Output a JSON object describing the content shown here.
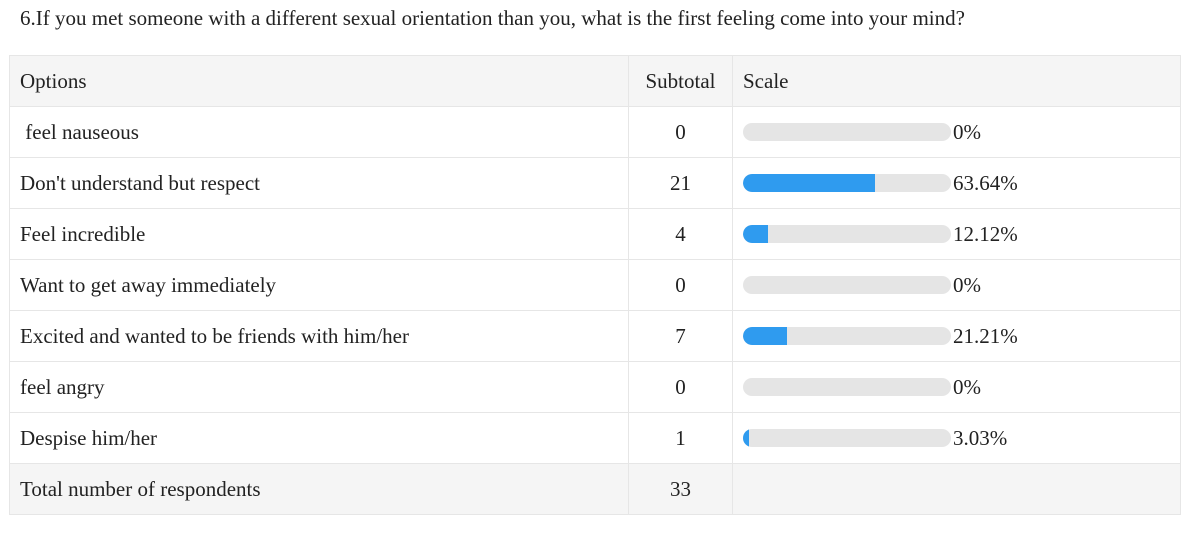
{
  "question": "6.If you met someone with a different sexual orientation than you, what is the first feeling come into your mind?",
  "headers": {
    "options": "Options",
    "subtotal": "Subtotal",
    "scale": "Scale"
  },
  "rows": [
    {
      "label": " feel nauseous",
      "subtotal": "0",
      "percent": "0%",
      "fraction": 0.0
    },
    {
      "label": "Don't understand but respect",
      "subtotal": "21",
      "percent": "63.64%",
      "fraction": 0.6364
    },
    {
      "label": "Feel incredible",
      "subtotal": "4",
      "percent": "12.12%",
      "fraction": 0.1212
    },
    {
      "label": "Want to get away immediately",
      "subtotal": "0",
      "percent": "0%",
      "fraction": 0.0
    },
    {
      "label": "Excited and wanted to be friends with him/her",
      "subtotal": "7",
      "percent": "21.21%",
      "fraction": 0.2121
    },
    {
      "label": "feel angry",
      "subtotal": "0",
      "percent": "0%",
      "fraction": 0.0
    },
    {
      "label": "Despise him/her",
      "subtotal": "1",
      "percent": "3.03%",
      "fraction": 0.0303
    }
  ],
  "total": {
    "label": "Total number of respondents",
    "value": "33"
  },
  "colors": {
    "bar_fill": "#2f9bef",
    "bar_track": "#e5e5e5",
    "header_bg": "#f5f5f5"
  }
}
